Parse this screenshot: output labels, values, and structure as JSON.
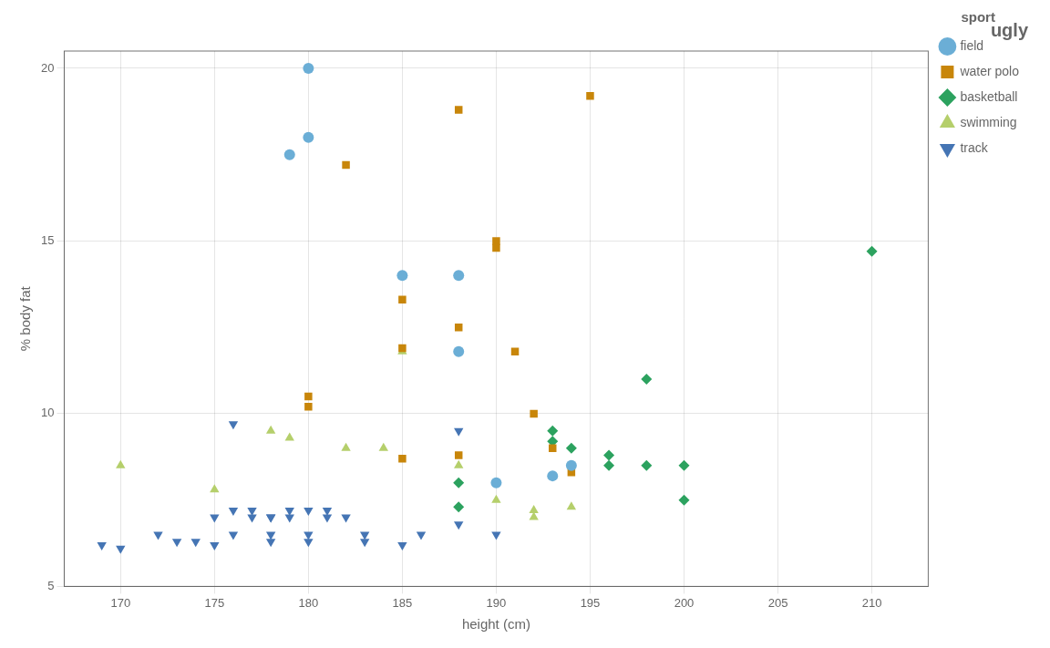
{
  "chart_data": {
    "type": "scatter",
    "title": "ugly",
    "x_label": "height (cm)",
    "y_label": "% body fat",
    "xlim": [
      167,
      213
    ],
    "ylim": [
      5,
      20.5
    ],
    "xticks": [
      170,
      175,
      180,
      185,
      190,
      195,
      200,
      205,
      210
    ],
    "yticks": [
      5,
      10,
      15,
      20
    ],
    "grid": true,
    "legend": "right",
    "legend_title": "sport",
    "series": [
      {
        "name": "field",
        "color": "#6baed6",
        "marker": "circle",
        "x": [
          180,
          180,
          179,
          185,
          188,
          188,
          190,
          193,
          194
        ],
        "values": [
          20.0,
          18.0,
          17.5,
          14.0,
          14.0,
          11.8,
          8.0,
          8.2,
          8.5
        ]
      },
      {
        "name": "water polo",
        "color": "#c8860a",
        "marker": "square",
        "x": [
          182,
          185,
          185,
          188,
          188,
          190,
          190,
          191,
          192,
          193,
          194,
          195,
          180,
          180,
          185,
          188
        ],
        "values": [
          17.2,
          13.3,
          11.9,
          12.5,
          18.8,
          15.0,
          14.8,
          11.8,
          10.0,
          9.0,
          8.3,
          19.2,
          10.5,
          10.2,
          8.7,
          8.8
        ]
      },
      {
        "name": "basketball",
        "color": "#2ca25f",
        "marker": "diamond",
        "x": [
          210,
          198,
          193,
          193,
          194,
          196,
          196,
          198,
          200,
          200,
          188,
          188
        ],
        "values": [
          14.7,
          11.0,
          9.5,
          9.2,
          9.0,
          8.8,
          8.5,
          8.5,
          7.5,
          8.5,
          7.3,
          8.0
        ]
      },
      {
        "name": "swimming",
        "color": "#b5cf6b",
        "marker": "triangle-up",
        "x": [
          170,
          175,
          178,
          179,
          182,
          184,
          185,
          188,
          190,
          192,
          194,
          192
        ],
        "values": [
          8.5,
          7.8,
          9.5,
          9.3,
          9.0,
          9.0,
          11.8,
          8.5,
          7.5,
          7.2,
          7.3,
          7.0
        ]
      },
      {
        "name": "track",
        "color": "#4575b4",
        "marker": "triangle-down",
        "x": [
          169,
          170,
          172,
          173,
          174,
          175,
          175,
          176,
          176,
          177,
          177,
          178,
          178,
          178,
          178,
          179,
          179,
          180,
          180,
          180,
          181,
          181,
          182,
          183,
          183,
          185,
          186,
          176,
          188,
          190,
          188
        ],
        "values": [
          6.2,
          6.1,
          6.5,
          6.3,
          6.3,
          6.2,
          7.0,
          7.2,
          6.5,
          7.2,
          7.0,
          7.0,
          7.0,
          6.5,
          6.3,
          7.2,
          7.0,
          7.2,
          6.5,
          6.3,
          7.2,
          7.0,
          7.0,
          6.5,
          6.3,
          6.2,
          6.5,
          9.7,
          9.5,
          6.5,
          6.8
        ]
      }
    ]
  }
}
